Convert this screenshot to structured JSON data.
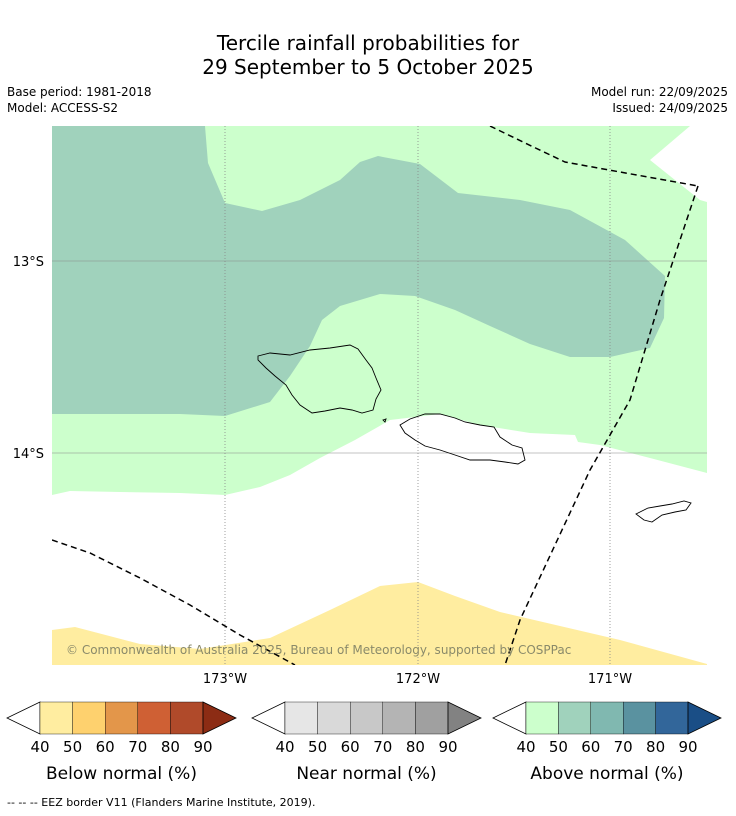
{
  "title": {
    "line1": "Tercile rainfall probabilities for",
    "line2": "29 September to 5 October 2025"
  },
  "meta": {
    "base_period": "Base period: 1981-2018",
    "model": "Model: ACCESS-S2",
    "model_run": "Model run: 22/09/2025",
    "issued": "Issued: 24/09/2025"
  },
  "axes": {
    "lat_ticks": [
      "13°S",
      "14°S"
    ],
    "lon_ticks": [
      "173°W",
      "172°W",
      "171°W"
    ]
  },
  "copyright": "© Commonwealth of Australia 2025, Bureau of Meteorology, supported by COSPPac",
  "colorbars": [
    {
      "label": "Below normal (%)",
      "ticks": [
        "40",
        "50",
        "60",
        "70",
        "80",
        "90"
      ],
      "colors": [
        "#ffffff",
        "#ffeda0",
        "#fed16e",
        "#e3964a",
        "#cf6034",
        "#b04a2a",
        "#8c2c14"
      ]
    },
    {
      "label": "Near normal (%)",
      "ticks": [
        "40",
        "50",
        "60",
        "70",
        "80",
        "90"
      ],
      "colors": [
        "#ffffff",
        "#e6e6e6",
        "#d9d9d9",
        "#c8c8c8",
        "#b4b4b4",
        "#a0a0a0",
        "#828282"
      ]
    },
    {
      "label": "Above normal (%)",
      "ticks": [
        "40",
        "50",
        "60",
        "70",
        "80",
        "90"
      ],
      "colors": [
        "#ffffff",
        "#ccffcc",
        "#a0d2bc",
        "#80b8b0",
        "#5a92a0",
        "#32669a",
        "#1a4e86"
      ]
    }
  ],
  "footnote": "--  --  -- EEZ border V11 (Flanders Marine Institute, 2019).",
  "legend_colors": {
    "above_50": "#ccffcc",
    "above_60": "#a0d2bc",
    "below_50": "#ffeda0"
  }
}
